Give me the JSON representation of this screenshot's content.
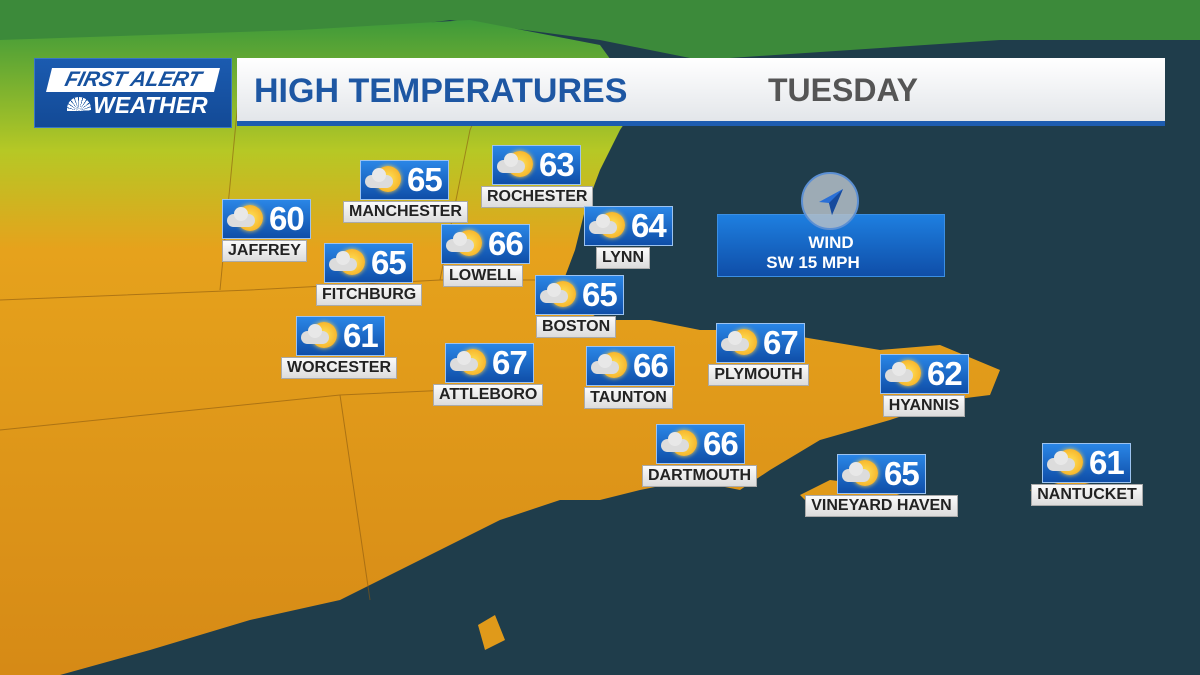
{
  "brand": {
    "line1": "FIRST ALERT",
    "line2": "WEATHER"
  },
  "header": {
    "title": "HIGH TEMPERATURES",
    "day": "TUESDAY"
  },
  "wind": {
    "label": "WIND",
    "value": "SW 15 MPH",
    "direction": "SW",
    "arrow_icon": "navigation-arrow-icon"
  },
  "colors": {
    "header_blue": "#1e57a3",
    "box_blue": "#1a6ed0",
    "land": "#e09a1a",
    "ocean": "#1e3c4a"
  },
  "cities": [
    {
      "name": "MANCHESTER",
      "temp": "65",
      "icon": "partly-cloudy-icon"
    },
    {
      "name": "ROCHESTER",
      "temp": "63",
      "icon": "partly-cloudy-icon"
    },
    {
      "name": "JAFFREY",
      "temp": "60",
      "icon": "partly-cloudy-icon"
    },
    {
      "name": "LOWELL",
      "temp": "66",
      "icon": "partly-cloudy-icon"
    },
    {
      "name": "LYNN",
      "temp": "64",
      "icon": "partly-cloudy-icon"
    },
    {
      "name": "FITCHBURG",
      "temp": "65",
      "icon": "partly-cloudy-icon"
    },
    {
      "name": "BOSTON",
      "temp": "65",
      "icon": "partly-cloudy-icon"
    },
    {
      "name": "WORCESTER",
      "temp": "61",
      "icon": "partly-cloudy-icon"
    },
    {
      "name": "ATTLEBORO",
      "temp": "67",
      "icon": "partly-cloudy-icon"
    },
    {
      "name": "TAUNTON",
      "temp": "66",
      "icon": "partly-cloudy-icon"
    },
    {
      "name": "PLYMOUTH",
      "temp": "67",
      "icon": "partly-cloudy-icon"
    },
    {
      "name": "HYANNIS",
      "temp": "62",
      "icon": "partly-cloudy-icon"
    },
    {
      "name": "DARTMOUTH",
      "temp": "66",
      "icon": "partly-cloudy-icon"
    },
    {
      "name": "VINEYARD HAVEN",
      "temp": "65",
      "icon": "partly-cloudy-icon"
    },
    {
      "name": "NANTUCKET",
      "temp": "61",
      "icon": "partly-cloudy-icon"
    }
  ]
}
